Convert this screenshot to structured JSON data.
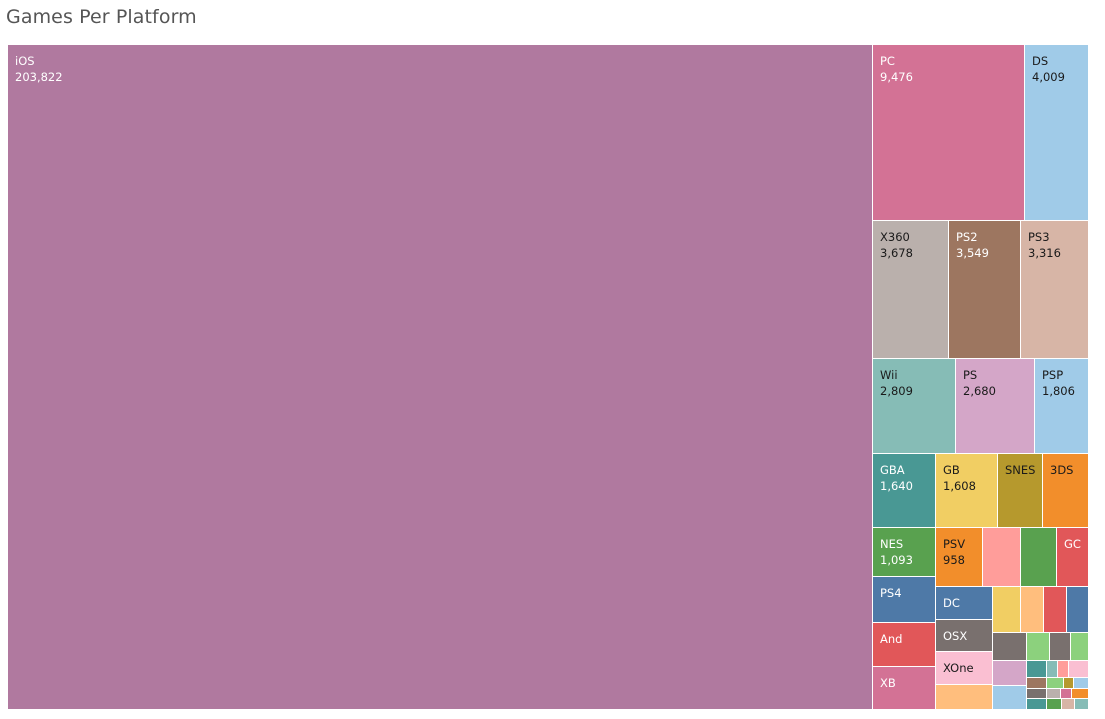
{
  "title": "Games Per Platform",
  "chart_data": {
    "type": "treemap",
    "title": "Games Per Platform",
    "cells": [
      {
        "label": "iOS",
        "value": "203,822",
        "color": "#b0799f",
        "text": "light"
      },
      {
        "label": "PC",
        "value": "9,476",
        "color": "#d37295",
        "text": "light"
      },
      {
        "label": "DS",
        "value": "4,009",
        "color": "#a0cbe8",
        "text": "dark"
      },
      {
        "label": "X360",
        "value": "3,678",
        "color": "#bab0ac",
        "text": "dark"
      },
      {
        "label": "PS2",
        "value": "3,549",
        "color": "#9d7660",
        "text": "light"
      },
      {
        "label": "PS3",
        "value": "3,316",
        "color": "#d7b5a6",
        "text": "dark"
      },
      {
        "label": "Wii",
        "value": "2,809",
        "color": "#86bcb6",
        "text": "dark"
      },
      {
        "label": "PS",
        "value": "2,680",
        "color": "#d4a6c8",
        "text": "dark"
      },
      {
        "label": "PSP",
        "value": "1,806",
        "color": "#a0cbe8",
        "text": "dark"
      },
      {
        "label": "GBA",
        "value": "1,640",
        "color": "#499894",
        "text": "light"
      },
      {
        "label": "GB",
        "value": "1,608",
        "color": "#f1ce63",
        "text": "dark"
      },
      {
        "label": "SNES",
        "value": "",
        "color": "#b6992d",
        "text": "dark"
      },
      {
        "label": "3DS",
        "value": "",
        "color": "#f28e2b",
        "text": "dark"
      },
      {
        "label": "NES",
        "value": "1,093",
        "color": "#59a14f",
        "text": "light"
      },
      {
        "label": "PSV",
        "value": "958",
        "color": "#f28e2b",
        "text": "dark"
      },
      {
        "label": "",
        "value": "",
        "color": "#ff9d9a",
        "text": "dark"
      },
      {
        "label": "",
        "value": "",
        "color": "#59a14f",
        "text": "dark"
      },
      {
        "label": "GC",
        "value": "",
        "color": "#e15759",
        "text": "light"
      },
      {
        "label": "PS4",
        "value": "",
        "color": "#4e79a7",
        "text": "light"
      },
      {
        "label": "DC",
        "value": "",
        "color": "#4e79a7",
        "text": "light"
      },
      {
        "label": "And",
        "value": "",
        "color": "#e15759",
        "text": "light"
      },
      {
        "label": "OSX",
        "value": "",
        "color": "#79706e",
        "text": "light"
      },
      {
        "label": "XOne",
        "value": "",
        "color": "#fabfd2",
        "text": "dark"
      },
      {
        "label": "XB",
        "value": "",
        "color": "#d37295",
        "text": "light"
      },
      {
        "label": "",
        "value": "",
        "color": "#f1ce63"
      },
      {
        "label": "",
        "value": "",
        "color": "#ffbe7d"
      },
      {
        "label": "",
        "value": "",
        "color": "#e15759"
      },
      {
        "label": "",
        "value": "",
        "color": "#4e79a7"
      },
      {
        "label": "",
        "value": "",
        "color": "#79706e"
      },
      {
        "label": "",
        "value": "",
        "color": "#8cd17d"
      },
      {
        "label": "",
        "value": "",
        "color": "#79706e"
      },
      {
        "label": "",
        "value": "",
        "color": "#8cd17d"
      },
      {
        "label": "",
        "value": "",
        "color": "#d4a6c8"
      },
      {
        "label": "",
        "value": "",
        "color": "#499894"
      },
      {
        "label": "",
        "value": "",
        "color": "#86bcb6"
      },
      {
        "label": "",
        "value": "",
        "color": "#ff9d9a"
      },
      {
        "label": "",
        "value": "",
        "color": "#fabfd2"
      },
      {
        "label": "",
        "value": "",
        "color": "#9d7660"
      },
      {
        "label": "",
        "value": "",
        "color": "#8cd17d"
      },
      {
        "label": "",
        "value": "",
        "color": "#b6992d"
      },
      {
        "label": "",
        "value": "",
        "color": "#a0cbe8"
      },
      {
        "label": "",
        "value": "",
        "color": "#79706e"
      },
      {
        "label": "",
        "value": "",
        "color": "#bab0ac"
      },
      {
        "label": "",
        "value": "",
        "color": "#d37295"
      },
      {
        "label": "",
        "value": "",
        "color": "#f28e2b"
      },
      {
        "label": "",
        "value": "",
        "color": "#499894"
      },
      {
        "label": "",
        "value": "",
        "color": "#59a14f"
      },
      {
        "label": "",
        "value": "",
        "color": "#d7b5a6"
      },
      {
        "label": "",
        "value": "",
        "color": "#86bcb6"
      },
      {
        "label": "",
        "value": "",
        "color": "#ffbe7d"
      },
      {
        "label": "",
        "value": "",
        "color": "#a0cbe8"
      }
    ]
  }
}
